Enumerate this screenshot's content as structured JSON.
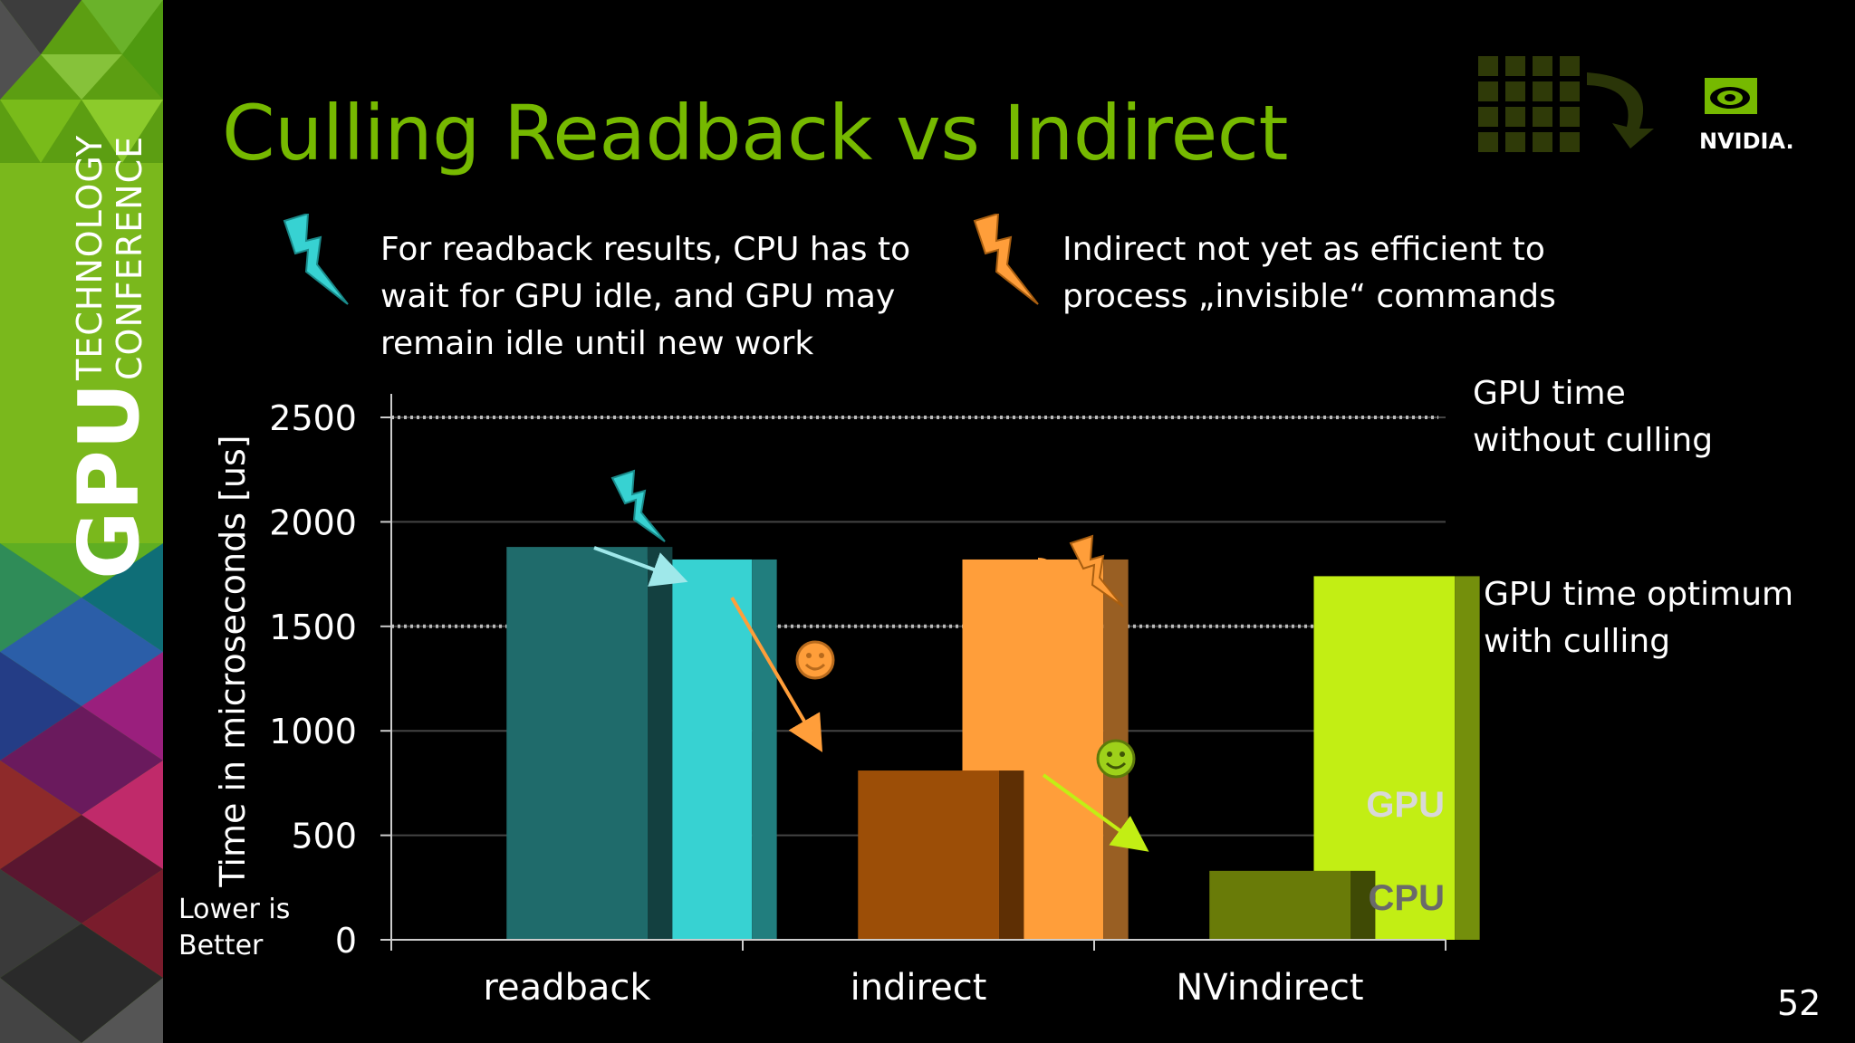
{
  "sidebar": {
    "gpu_label": "GPU",
    "line1": "TECHNOLOGY",
    "line2": "CONFERENCE"
  },
  "title": "Culling Readback vs Indirect",
  "notes": {
    "readback": [
      "For readback results, CPU has to",
      "wait for GPU idle, and GPU may",
      "remain idle until new work"
    ],
    "indirect": [
      "Indirect not yet as efficient to",
      "process „invisible“ commands"
    ]
  },
  "logo": {
    "text": "NVIDIA."
  },
  "slide_number": "52",
  "colors": {
    "accent": "#76b900",
    "readback_cpu": "#1f6b6b",
    "readback_gpu": "#37d2d2",
    "indirect_cpu": "#9c4e07",
    "indirect_gpu": "#ff9e3a",
    "nvindirect_cpu": "#697b08",
    "nvindirect_gpu": "#c2ee14"
  },
  "chart_data": {
    "type": "bar",
    "categories": [
      "readback",
      "indirect",
      "NVindirect"
    ],
    "series": [
      {
        "name": "CPU",
        "values": [
          1880,
          810,
          330
        ]
      },
      {
        "name": "GPU",
        "values": [
          1820,
          1820,
          1740
        ]
      }
    ],
    "ylabel": "Time in microseconds [us]",
    "xlabel": "",
    "ylim": [
      0,
      2500
    ],
    "yticks": [
      0,
      500,
      1000,
      1500,
      2000,
      2500
    ],
    "grid": true,
    "reference_lines": [
      {
        "value": 2500,
        "label": [
          "GPU time",
          "without culling"
        ]
      },
      {
        "value": 1500,
        "label": [
          "GPU time optimum",
          "with culling"
        ]
      }
    ],
    "series_labels": {
      "gpu": "GPU",
      "cpu": "CPU"
    },
    "lower_is_better": [
      "Lower is",
      "Better"
    ]
  }
}
